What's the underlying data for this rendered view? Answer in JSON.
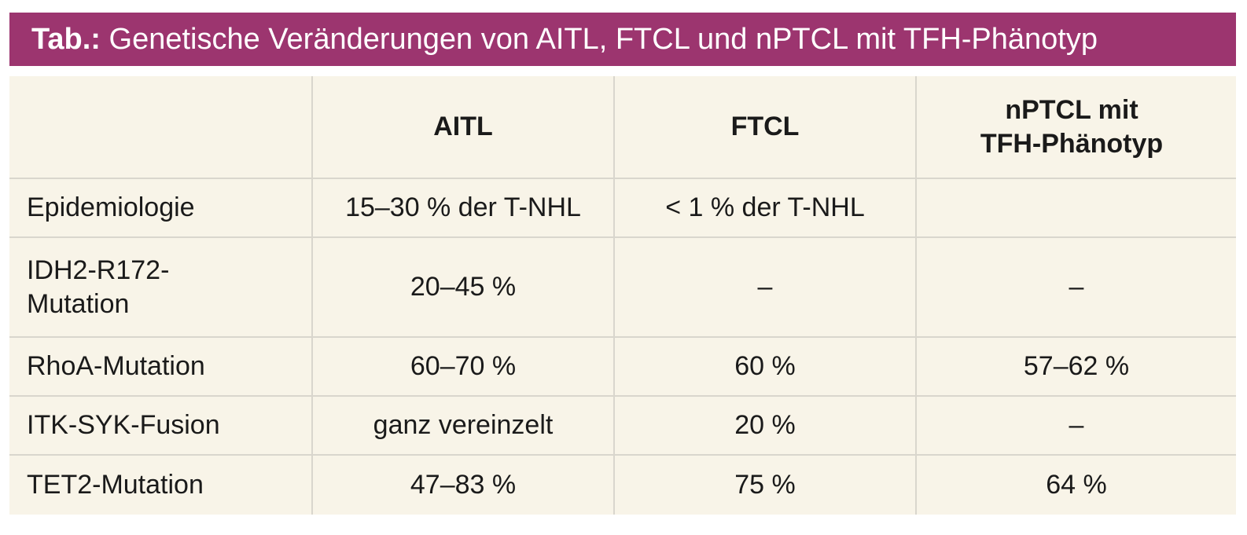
{
  "title": {
    "label": "Tab.:",
    "text": "Genetische Veränderungen von AITL, FTCL und nPTCL mit TFH-Phänotyp"
  },
  "table": {
    "headers": [
      "",
      "AITL",
      "FTCL",
      "nPTCL mit\nTFH-Phänotyp"
    ],
    "rows": [
      [
        "Epidemiologie",
        "15–30 % der T-NHL",
        "< 1 % der T-NHL",
        ""
      ],
      [
        "IDH2-R172-\nMutation",
        "20–45 %",
        "–",
        "–"
      ],
      [
        "RhoA-Mutation",
        "60–70 %",
        "60 %",
        "57–62 %"
      ],
      [
        "ITK-SYK-Fusion",
        "ganz vereinzelt",
        "20 %",
        "–"
      ],
      [
        "TET2-Mutation",
        "47–83 %",
        "75 %",
        "64 %"
      ]
    ]
  },
  "colors": {
    "title_bg": "#9c356f",
    "table_bg": "#f8f4e8",
    "grid": "#d9d6cd"
  }
}
